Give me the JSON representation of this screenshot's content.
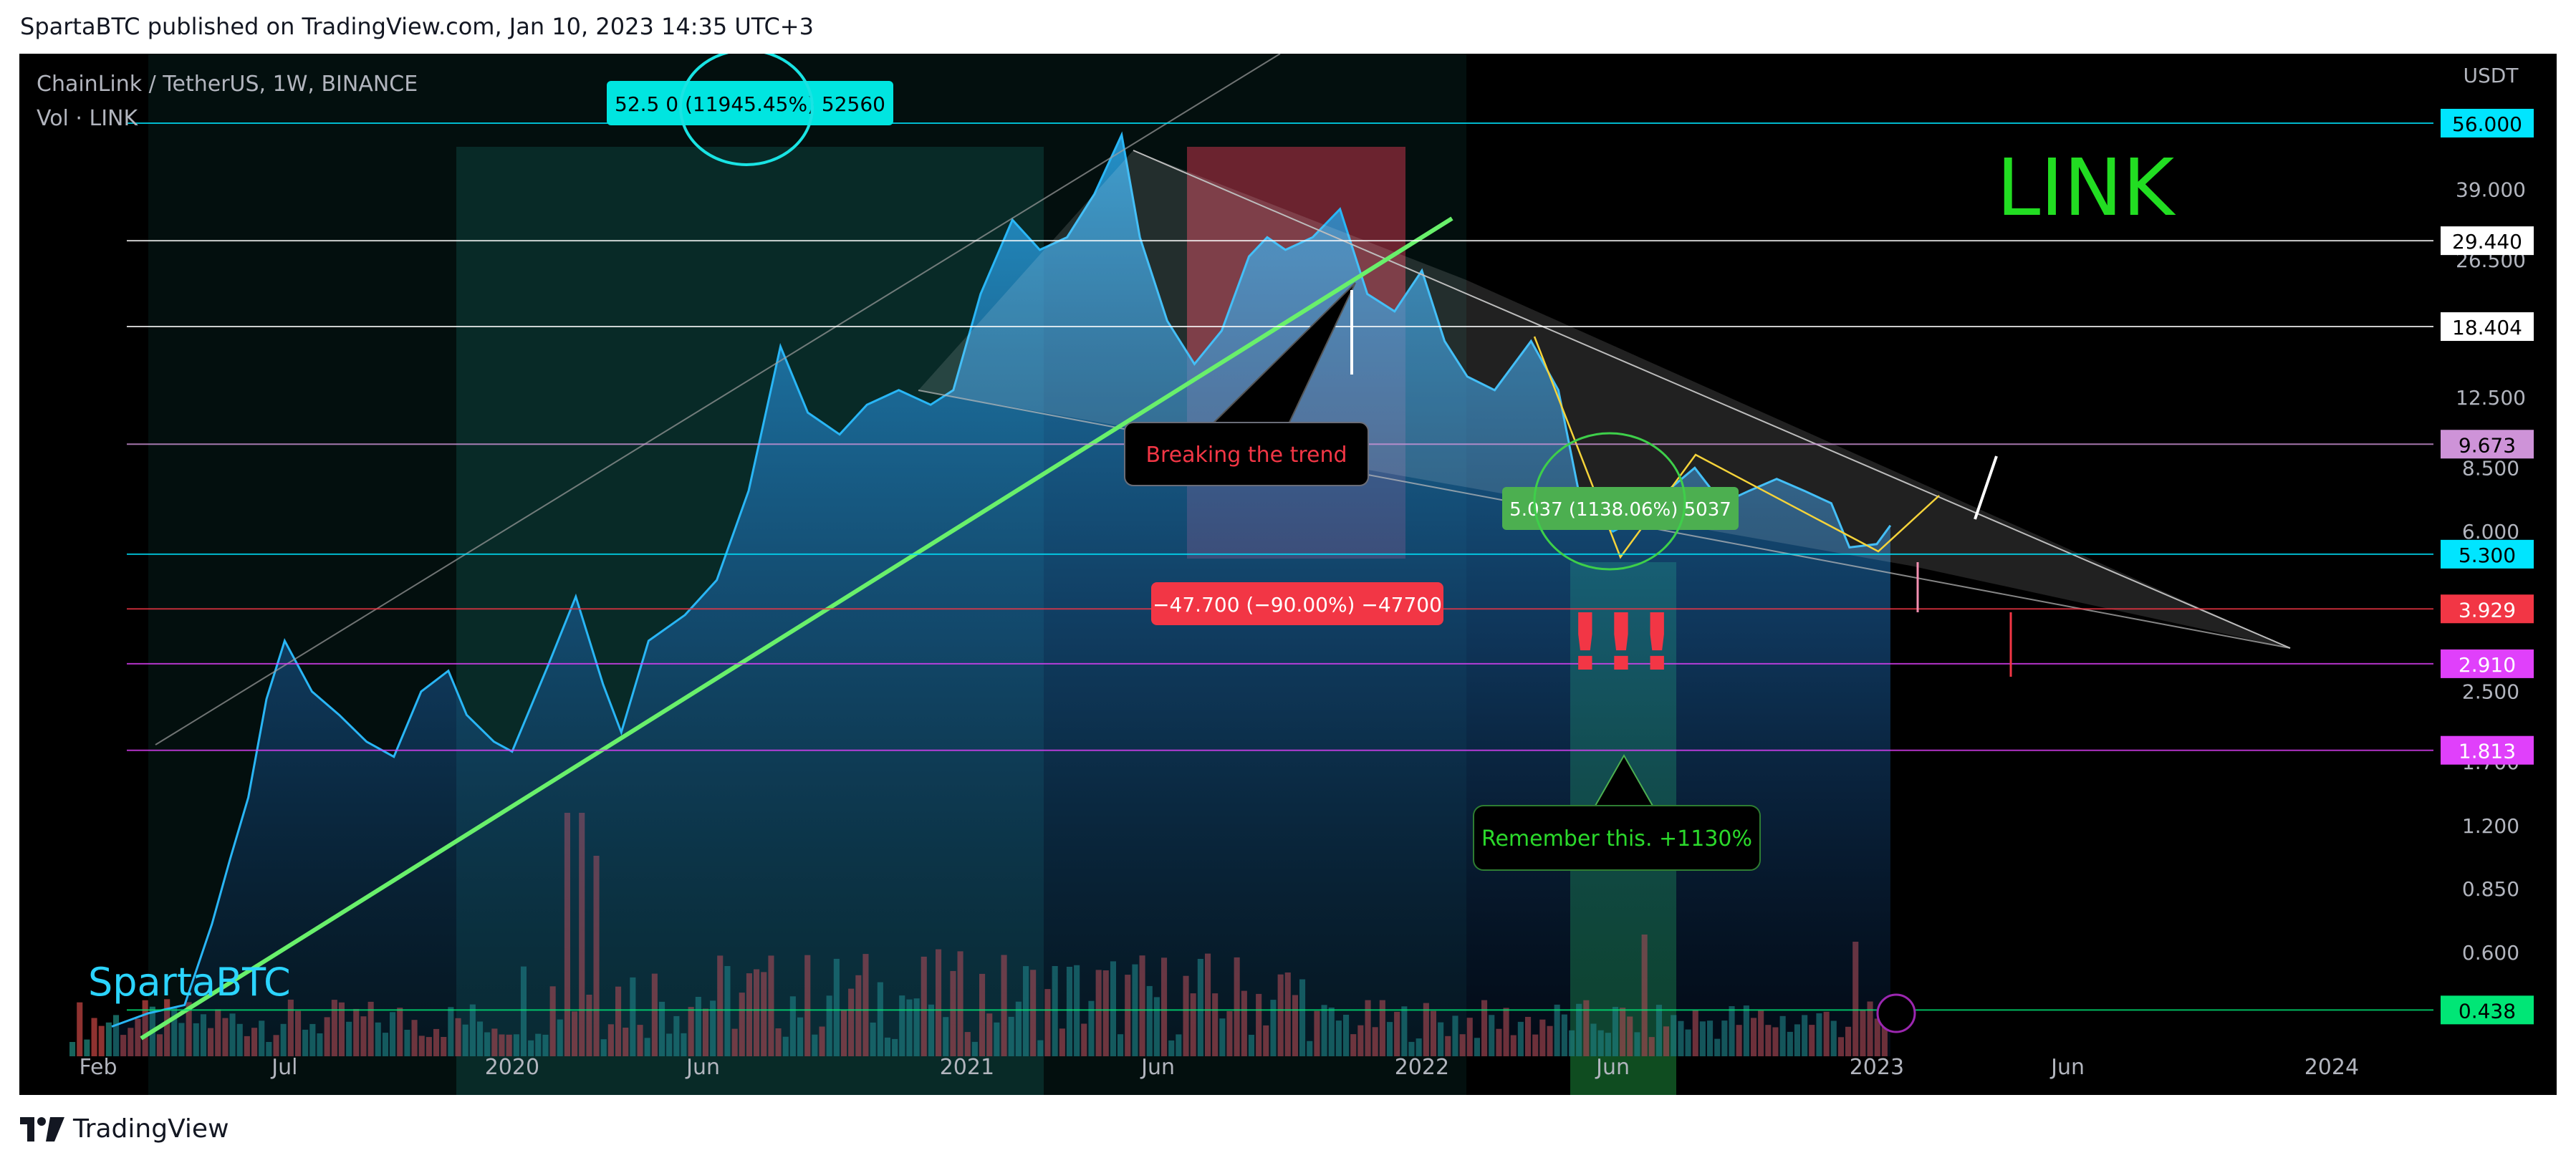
{
  "header": {
    "published": "SpartaBTC published on TradingView.com, Jan 10, 2023 14:35 UTC+3"
  },
  "footer": {
    "brand": "TradingView"
  },
  "chart_data": {
    "type": "area",
    "symbol": "ChainLink / TetherUS, 1W, BINANCE",
    "volume_label": "Vol · LINK",
    "currency": "USDT",
    "title_overlay": "LINK",
    "watermark": "SpartaBTC",
    "y_scale": "log",
    "ylim": [
      0.34,
      70
    ],
    "y_ticks": [
      "39.000",
      "26.500",
      "12.500",
      "8.500",
      "6.000",
      "2.500",
      "1.700",
      "1.200",
      "0.850",
      "0.600"
    ],
    "x_tick_labels": [
      {
        "label": "Feb",
        "t": 2019.09
      },
      {
        "label": "Jul",
        "t": 2019.5
      },
      {
        "label": "2020",
        "t": 2020.0
      },
      {
        "label": "Jun",
        "t": 2020.42
      },
      {
        "label": "2021",
        "t": 2021.0
      },
      {
        "label": "Jun",
        "t": 2021.42
      },
      {
        "label": "2022",
        "t": 2022.0
      },
      {
        "label": "Jun",
        "t": 2022.42
      },
      {
        "label": "2023",
        "t": 2023.0
      },
      {
        "label": "Jun",
        "t": 2023.42
      },
      {
        "label": "2024",
        "t": 2024.0
      }
    ],
    "price_series": [
      {
        "t": 2019.12,
        "v": 0.4
      },
      {
        "t": 2019.2,
        "v": 0.43
      },
      {
        "t": 2019.28,
        "v": 0.45
      },
      {
        "t": 2019.34,
        "v": 0.7
      },
      {
        "t": 2019.38,
        "v": 1.0
      },
      {
        "t": 2019.42,
        "v": 1.4
      },
      {
        "t": 2019.46,
        "v": 2.4
      },
      {
        "t": 2019.5,
        "v": 3.3
      },
      {
        "t": 2019.56,
        "v": 2.5
      },
      {
        "t": 2019.62,
        "v": 2.2
      },
      {
        "t": 2019.68,
        "v": 1.9
      },
      {
        "t": 2019.74,
        "v": 1.75
      },
      {
        "t": 2019.8,
        "v": 2.5
      },
      {
        "t": 2019.86,
        "v": 2.8
      },
      {
        "t": 2019.9,
        "v": 2.2
      },
      {
        "t": 2019.96,
        "v": 1.9
      },
      {
        "t": 2020.0,
        "v": 1.8
      },
      {
        "t": 2020.08,
        "v": 2.9
      },
      {
        "t": 2020.14,
        "v": 4.2
      },
      {
        "t": 2020.2,
        "v": 2.6
      },
      {
        "t": 2020.24,
        "v": 2.0
      },
      {
        "t": 2020.3,
        "v": 3.3
      },
      {
        "t": 2020.38,
        "v": 3.8
      },
      {
        "t": 2020.45,
        "v": 4.6
      },
      {
        "t": 2020.52,
        "v": 7.5
      },
      {
        "t": 2020.59,
        "v": 16.5
      },
      {
        "t": 2020.65,
        "v": 11.5
      },
      {
        "t": 2020.72,
        "v": 10.2
      },
      {
        "t": 2020.78,
        "v": 12.0
      },
      {
        "t": 2020.85,
        "v": 13.0
      },
      {
        "t": 2020.92,
        "v": 12.0
      },
      {
        "t": 2020.97,
        "v": 13.0
      },
      {
        "t": 2021.03,
        "v": 22.0
      },
      {
        "t": 2021.1,
        "v": 33.0
      },
      {
        "t": 2021.16,
        "v": 28.0
      },
      {
        "t": 2021.22,
        "v": 30.0
      },
      {
        "t": 2021.28,
        "v": 38.0
      },
      {
        "t": 2021.34,
        "v": 52.5
      },
      {
        "t": 2021.38,
        "v": 30.0
      },
      {
        "t": 2021.44,
        "v": 19.0
      },
      {
        "t": 2021.5,
        "v": 15.0
      },
      {
        "t": 2021.56,
        "v": 18.0
      },
      {
        "t": 2021.62,
        "v": 27.0
      },
      {
        "t": 2021.66,
        "v": 30.0
      },
      {
        "t": 2021.7,
        "v": 28.0
      },
      {
        "t": 2021.76,
        "v": 30.0
      },
      {
        "t": 2021.82,
        "v": 35.0
      },
      {
        "t": 2021.88,
        "v": 22.0
      },
      {
        "t": 2021.94,
        "v": 20.0
      },
      {
        "t": 2022.0,
        "v": 25.0
      },
      {
        "t": 2022.05,
        "v": 17.0
      },
      {
        "t": 2022.1,
        "v": 14.0
      },
      {
        "t": 2022.16,
        "v": 13.0
      },
      {
        "t": 2022.24,
        "v": 17.0
      },
      {
        "t": 2022.3,
        "v": 13.0
      },
      {
        "t": 2022.35,
        "v": 7.0
      },
      {
        "t": 2022.42,
        "v": 6.0
      },
      {
        "t": 2022.48,
        "v": 6.5
      },
      {
        "t": 2022.54,
        "v": 7.5
      },
      {
        "t": 2022.6,
        "v": 8.5
      },
      {
        "t": 2022.66,
        "v": 7.0
      },
      {
        "t": 2022.72,
        "v": 7.5
      },
      {
        "t": 2022.78,
        "v": 8.0
      },
      {
        "t": 2022.84,
        "v": 7.5
      },
      {
        "t": 2022.9,
        "v": 7.0
      },
      {
        "t": 2022.94,
        "v": 5.5
      },
      {
        "t": 2023.0,
        "v": 5.6
      },
      {
        "t": 2023.03,
        "v": 6.2
      }
    ],
    "price_labels": [
      {
        "text": "56.000",
        "value": 56.0,
        "bg": "#00e5ff",
        "color": "#000000"
      },
      {
        "text": "29.440",
        "value": 29.44,
        "bg": "#ffffff",
        "color": "#000000"
      },
      {
        "text": "18.404",
        "value": 18.404,
        "bg": "#ffffff",
        "color": "#000000"
      },
      {
        "text": "9.673",
        "value": 9.673,
        "bg": "#ce93d8",
        "color": "#000000"
      },
      {
        "text": "5.300",
        "value": 5.3,
        "bg": "#00e5ff",
        "color": "#000000"
      },
      {
        "text": "3.929",
        "value": 3.929,
        "bg": "#f23645",
        "color": "#ffffff"
      },
      {
        "text": "2.910",
        "value": 2.91,
        "bg": "#e040fb",
        "color": "#ffffff"
      },
      {
        "text": "1.813",
        "value": 1.813,
        "bg": "#e040fb",
        "color": "#ffffff"
      },
      {
        "text": "0.438",
        "value": 0.438,
        "bg": "#00e676",
        "color": "#000000"
      }
    ],
    "annotations": {
      "peak_measure": "52.5 0 (11945.45%) 52560",
      "breaking_trend": "Breaking the trend",
      "drop_measure": "−47.700 (−90.00%) −47700",
      "rally_measure": "5.037 (1138.06%) 5037",
      "exclamation": "!!!",
      "remember": "Remember this. +1130%"
    },
    "colors": {
      "area_line": "#29b6f6",
      "trendline": "#69f06b",
      "up_volume": "#26a69a",
      "down_volume": "#ef5350",
      "title_overlay": "#22dd22",
      "watermark": "#2bd4ff"
    }
  }
}
